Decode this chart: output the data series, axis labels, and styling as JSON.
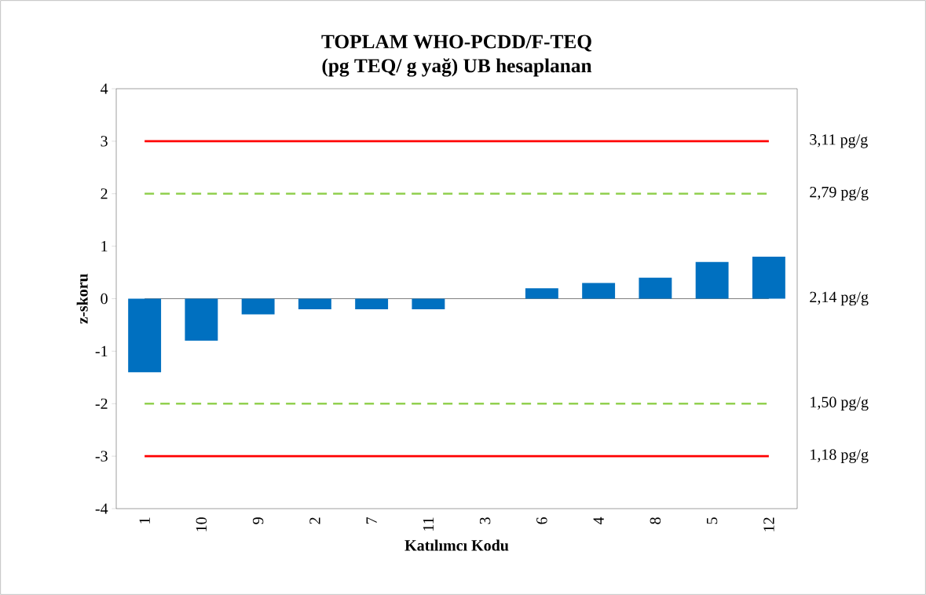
{
  "chart_data": {
    "type": "bar",
    "title": "TOPLAM WHO-PCDD/F-TEQ",
    "subtitle": "(pg TEQ/ g yağ) UB hesaplanan",
    "xlabel": "Katılımcı Kodu",
    "ylabel": "z-skoru",
    "categories": [
      "1",
      "10",
      "9",
      "2",
      "7",
      "11",
      "3",
      "6",
      "4",
      "8",
      "5",
      "12"
    ],
    "values": [
      -1.4,
      -0.8,
      -0.3,
      -0.2,
      -0.2,
      -0.2,
      0,
      0.2,
      0.3,
      0.4,
      0.7,
      0.8
    ],
    "color": "#0070c0",
    "ylim": [
      -4,
      4
    ],
    "yticks": [
      -4,
      -3,
      -2,
      -1,
      0,
      1,
      2,
      3,
      4
    ],
    "ref_lines": [
      {
        "axis": "y",
        "value": 3,
        "label": "3,11 pg/g",
        "color": "#ff0000",
        "line_style": "solid"
      },
      {
        "axis": "y",
        "value": 2,
        "label": "2,79 pg/g",
        "color": "#92d050",
        "line_style": "dashed"
      },
      {
        "axis": "y",
        "value": 0,
        "label": "2,14 pg/g",
        "color": "#808080",
        "line_style": "solid"
      },
      {
        "axis": "y",
        "value": -2,
        "label": "1,50 pg/g",
        "color": "#92d050",
        "line_style": "dashed"
      },
      {
        "axis": "y",
        "value": -3,
        "label": "1,18 pg/g",
        "color": "#ff0000",
        "line_style": "solid"
      }
    ]
  }
}
